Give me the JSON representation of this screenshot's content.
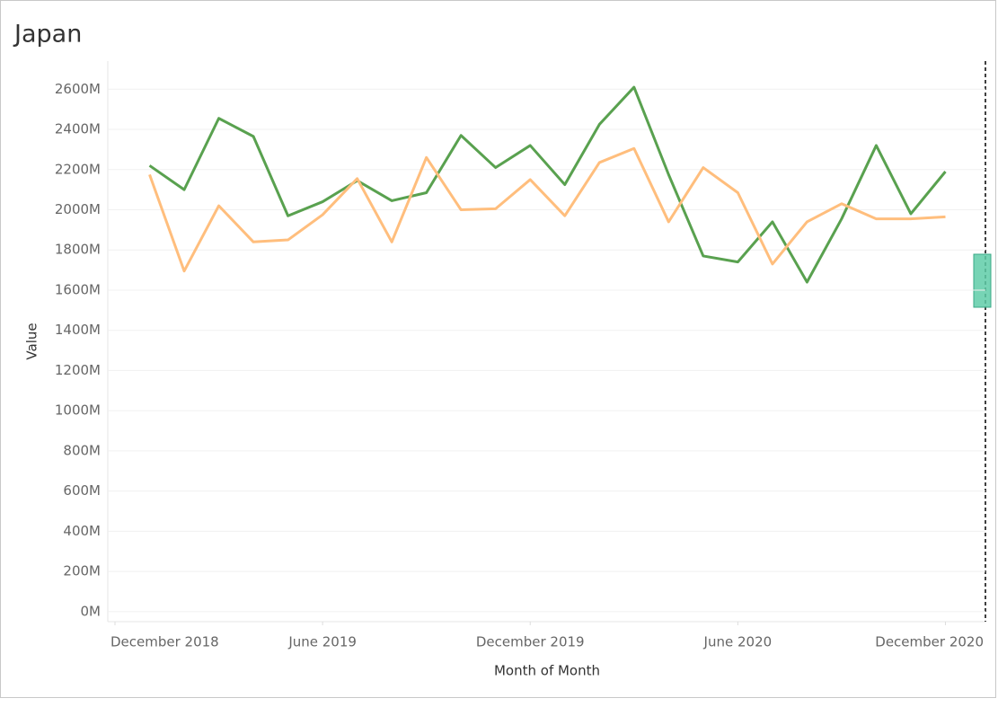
{
  "chart_data": {
    "type": "line",
    "title": "Japan",
    "x_label": "Month of Month",
    "y_label": "Value",
    "x": [
      "2019-01",
      "2019-02",
      "2019-03",
      "2019-04",
      "2019-05",
      "2019-06",
      "2019-07",
      "2019-08",
      "2019-09",
      "2019-10",
      "2019-11",
      "2019-12",
      "2020-01",
      "2020-02",
      "2020-03",
      "2020-04",
      "2020-05",
      "2020-06",
      "2020-07",
      "2020-08",
      "2020-09",
      "2020-10",
      "2020-11",
      "2020-12"
    ],
    "series": [
      {
        "color": "#59a14f",
        "values": [
          2220000000,
          2100000000,
          2455000000,
          2365000000,
          1970000000,
          2040000000,
          2145000000,
          2045000000,
          2085000000,
          2370000000,
          2210000000,
          2320000000,
          2125000000,
          2425000000,
          2610000000,
          2175000000,
          1770000000,
          1740000000,
          1940000000,
          1640000000,
          1955000000,
          2320000000,
          1980000000,
          2190000000
        ]
      },
      {
        "color": "#ffbe7d",
        "values": [
          2175000000,
          1695000000,
          2020000000,
          1840000000,
          1850000000,
          1975000000,
          2155000000,
          1840000000,
          2260000000,
          2000000000,
          2005000000,
          2150000000,
          1970000000,
          2235000000,
          2305000000,
          1940000000,
          2210000000,
          2085000000,
          1730000000,
          1940000000,
          2030000000,
          1955000000,
          1955000000,
          1965000000
        ]
      }
    ],
    "xlim": [
      "2018-12",
      "2021-01"
    ],
    "xticks": [
      {
        "value": "2018-12",
        "label": "December 2018"
      },
      {
        "value": "2019-06",
        "label": "June 2019"
      },
      {
        "value": "2019-12",
        "label": "December 2019"
      },
      {
        "value": "2020-06",
        "label": "June 2020"
      },
      {
        "value": "2020-12",
        "label": "December 2020"
      }
    ],
    "ylim": [
      -50000000,
      2740000000
    ],
    "yticks": [
      {
        "value": 0,
        "label": "0M"
      },
      {
        "value": 200000000,
        "label": "200M"
      },
      {
        "value": 400000000,
        "label": "400M"
      },
      {
        "value": 600000000,
        "label": "600M"
      },
      {
        "value": 800000000,
        "label": "800M"
      },
      {
        "value": 1000000000,
        "label": "1000M"
      },
      {
        "value": 1200000000,
        "label": "1200M"
      },
      {
        "value": 1400000000,
        "label": "1400M"
      },
      {
        "value": 1600000000,
        "label": "1600M"
      },
      {
        "value": 1800000000,
        "label": "1800M"
      },
      {
        "value": 2000000000,
        "label": "2000M"
      },
      {
        "value": 2200000000,
        "label": "2200M"
      },
      {
        "value": 2400000000,
        "label": "2400M"
      },
      {
        "value": 2600000000,
        "label": "2600M"
      }
    ],
    "grid": true
  }
}
